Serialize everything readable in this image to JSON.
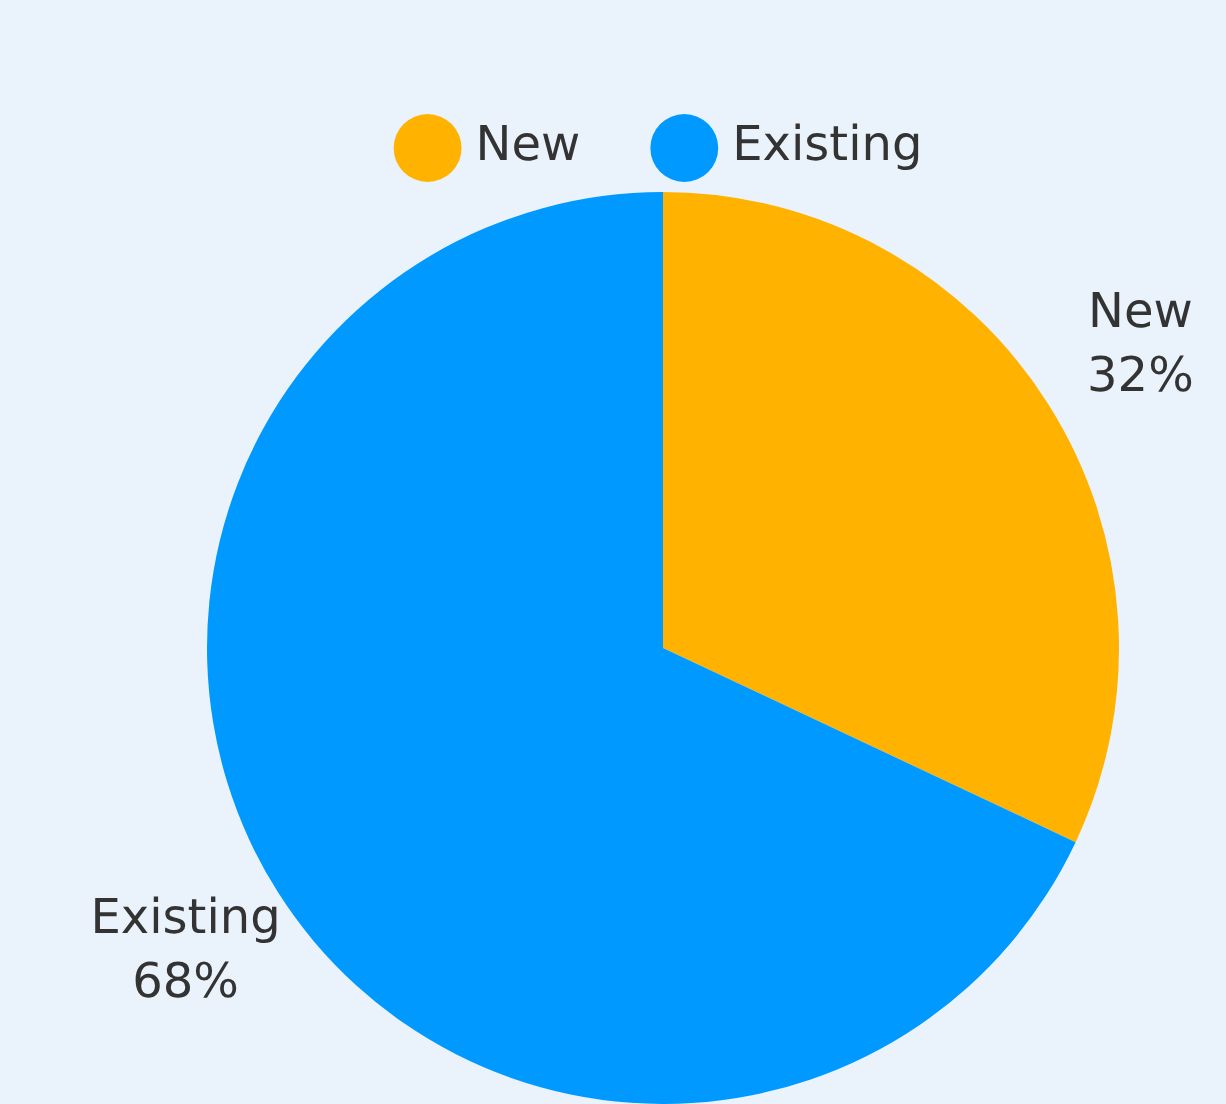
{
  "chart_data": {
    "type": "pie",
    "categories": [
      "New",
      "Existing"
    ],
    "values": [
      32,
      68
    ],
    "colors": [
      "#ffb300",
      "#0099ff"
    ],
    "value_labels": [
      "32%",
      "68%"
    ],
    "legend": "top"
  }
}
